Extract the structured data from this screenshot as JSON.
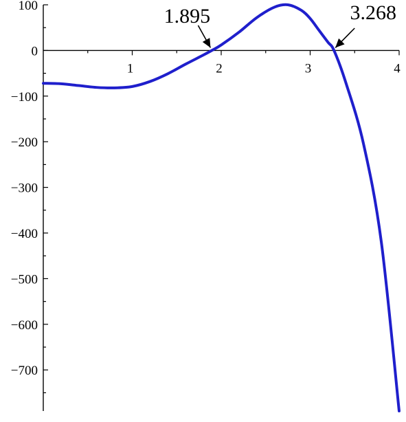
{
  "chart_data": {
    "type": "line",
    "title": "",
    "xlabel": "",
    "ylabel": "",
    "xlim": [
      0,
      4
    ],
    "ylim": [
      -790,
      100
    ],
    "grid": false,
    "x_ticks": [
      {
        "value": 1,
        "label": "1"
      },
      {
        "value": 2,
        "label": "2"
      },
      {
        "value": 3,
        "label": "3"
      },
      {
        "value": 4,
        "label": "4"
      }
    ],
    "y_ticks": [
      {
        "value": 100,
        "label": "100"
      },
      {
        "value": 0,
        "label": "0"
      },
      {
        "value": -100,
        "label": "−100"
      },
      {
        "value": -200,
        "label": "−200"
      },
      {
        "value": -300,
        "label": "−300"
      },
      {
        "value": -400,
        "label": "−400"
      },
      {
        "value": -500,
        "label": "−500"
      },
      {
        "value": -600,
        "label": "−600"
      },
      {
        "value": -700,
        "label": "−700"
      }
    ],
    "series": [
      {
        "color": "#1f1fcc",
        "x": [
          0,
          0.2,
          0.4,
          0.6,
          0.8,
          1.0,
          1.2,
          1.4,
          1.6,
          1.8,
          1.895,
          2.0,
          2.2,
          2.4,
          2.6,
          2.75,
          2.9,
          3.0,
          3.1,
          3.2,
          3.268,
          3.4,
          3.6,
          3.8,
          4.0
        ],
        "y": [
          -72,
          -73,
          -77,
          -81,
          -82,
          -79,
          -68,
          -51,
          -30,
          -10,
          0,
          12,
          40,
          72,
          95,
          100,
          88,
          70,
          44,
          18,
          0,
          -70,
          -205,
          -420,
          -790
        ]
      }
    ],
    "annotations": [
      {
        "label": "1.895",
        "x": 1.895,
        "y": 0
      },
      {
        "label": "3.268",
        "x": 3.268,
        "y": 0
      }
    ]
  }
}
